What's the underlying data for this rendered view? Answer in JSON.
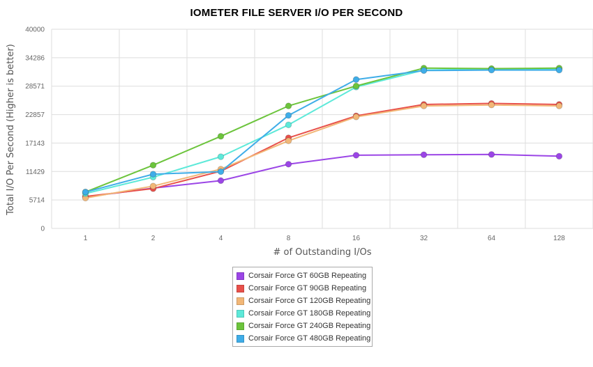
{
  "chart_data": {
    "type": "line",
    "title": "IOMETER FILE SERVER I/O PER SECOND",
    "xlabel": "# of Outstanding I/Os",
    "ylabel": "Total I/O Per Second (Higher is better)",
    "categories": [
      "1",
      "2",
      "4",
      "8",
      "16",
      "32",
      "64",
      "128"
    ],
    "y_ticks": [
      "0",
      "5714",
      "11429",
      "17143",
      "22857",
      "28571",
      "34286",
      "40000"
    ],
    "ylim": [
      0,
      40000
    ],
    "grid": true,
    "legend_position": "bottom-center",
    "series": [
      {
        "name": "Corsair Force GT 60GB Repeating",
        "color": "#9b45e6",
        "values": [
          6300,
          8100,
          9600,
          12900,
          14700,
          14800,
          14850,
          14500
        ]
      },
      {
        "name": "Corsair Force GT 90GB Repeating",
        "color": "#e8504a",
        "values": [
          6400,
          8000,
          11500,
          18200,
          22600,
          24900,
          25100,
          24900
        ]
      },
      {
        "name": "Corsair Force GT 120GB Repeating",
        "color": "#f2b777",
        "values": [
          6100,
          8500,
          11900,
          17600,
          22400,
          24600,
          24800,
          24600
        ]
      },
      {
        "name": "Corsair Force GT 180GB Repeating",
        "color": "#5de9d9",
        "values": [
          7000,
          10300,
          14400,
          20800,
          28400,
          31800,
          32000,
          32000
        ]
      },
      {
        "name": "Corsair Force GT 240GB Repeating",
        "color": "#6cc43c",
        "values": [
          7300,
          12700,
          18500,
          24600,
          28600,
          32200,
          32100,
          32200
        ]
      },
      {
        "name": "Corsair Force GT 480GB Repeating",
        "color": "#3fade8",
        "values": [
          7300,
          10900,
          11400,
          22700,
          29900,
          31700,
          31800,
          31800
        ]
      }
    ]
  }
}
